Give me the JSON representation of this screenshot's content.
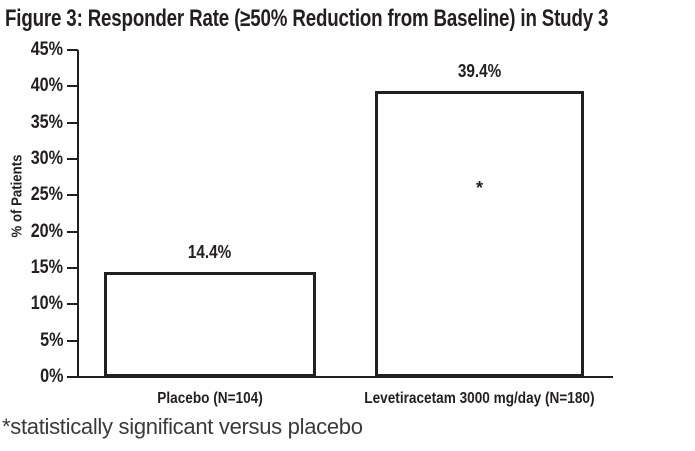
{
  "chart_data": {
    "type": "bar",
    "title": "Figure 3: Responder Rate (≥50% Reduction from Baseline) in Study 3",
    "xlabel": "",
    "ylabel": "% of Patients",
    "ylim": [
      0,
      45
    ],
    "ytick_step": 5,
    "ytick_labels": [
      "0%",
      "5%",
      "10%",
      "15%",
      "20%",
      "25%",
      "30%",
      "35%",
      "40%",
      "45%"
    ],
    "categories": [
      "Placebo (N=104)",
      "Levetiracetam 3000 mg/day (N=180)"
    ],
    "values": [
      14.4,
      39.4
    ],
    "value_labels": [
      "14.4%",
      "39.4%"
    ],
    "grid": false,
    "legend": false,
    "bar_fill": "#ffffff",
    "bar_border": "#231f20",
    "annotations": [
      {
        "text": "*",
        "bar_index": 1,
        "y_percent": 26
      }
    ],
    "footnote": "*statistically significant versus placebo"
  }
}
